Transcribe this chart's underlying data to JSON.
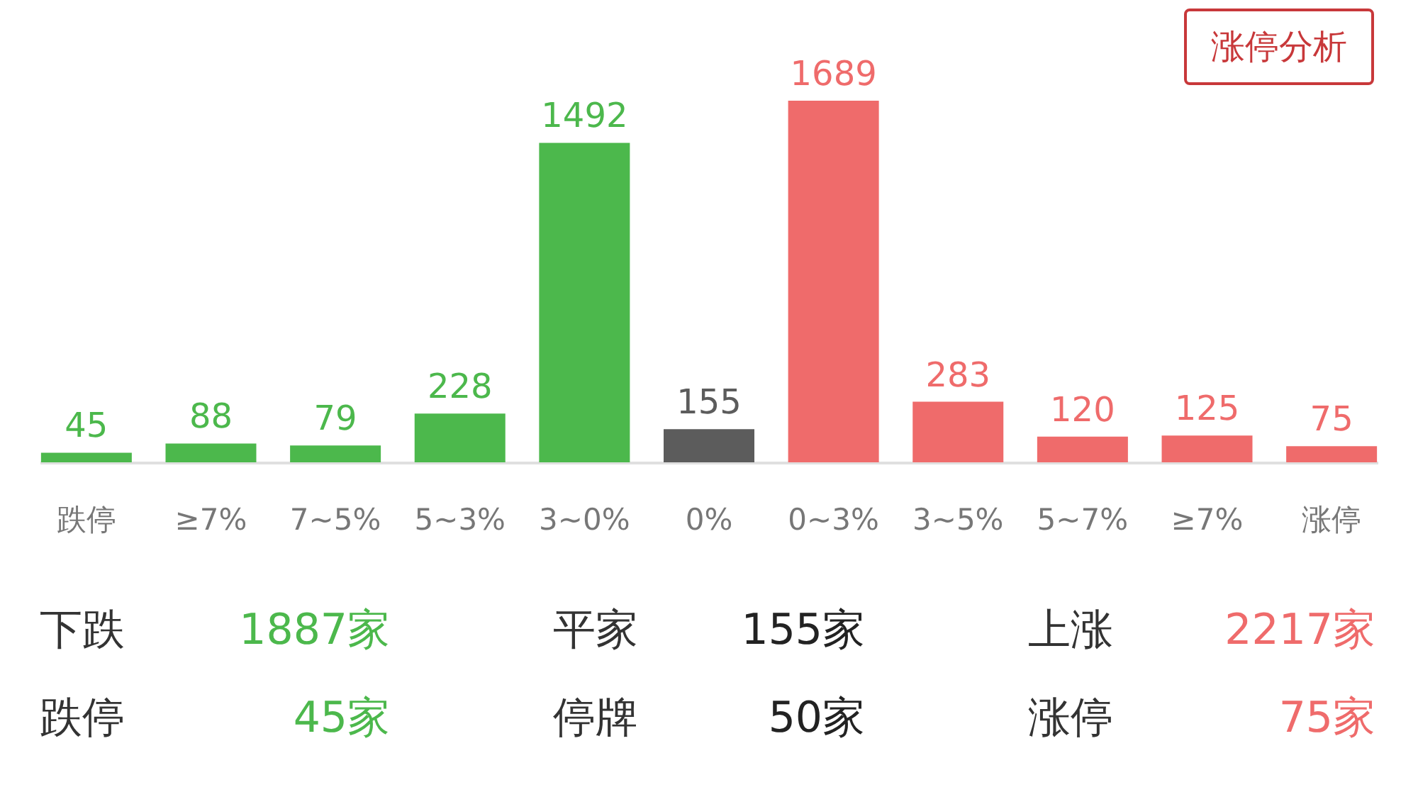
{
  "chart_data": {
    "type": "bar",
    "categories": [
      "跌停",
      "≥7%",
      "7~5%",
      "5~3%",
      "3~0%",
      "0%",
      "0~3%",
      "3~5%",
      "5~7%",
      "≥7%",
      "涨停"
    ],
    "values": [
      45,
      88,
      79,
      228,
      1492,
      155,
      1689,
      283,
      120,
      125,
      75
    ],
    "colors": [
      "#4cb84c",
      "#4cb84c",
      "#4cb84c",
      "#4cb84c",
      "#4cb84c",
      "#5c5c5c",
      "#ef6b6b",
      "#ef6b6b",
      "#ef6b6b",
      "#ef6b6b",
      "#ef6b6b"
    ],
    "data_labels": true,
    "annotations": [
      "涨停分析",
      "下跌",
      "1887家",
      "平家",
      "155家",
      "上涨",
      "2217家",
      "跌停",
      "45家",
      "停牌",
      "50家",
      "涨停",
      "75家"
    ]
  }
}
